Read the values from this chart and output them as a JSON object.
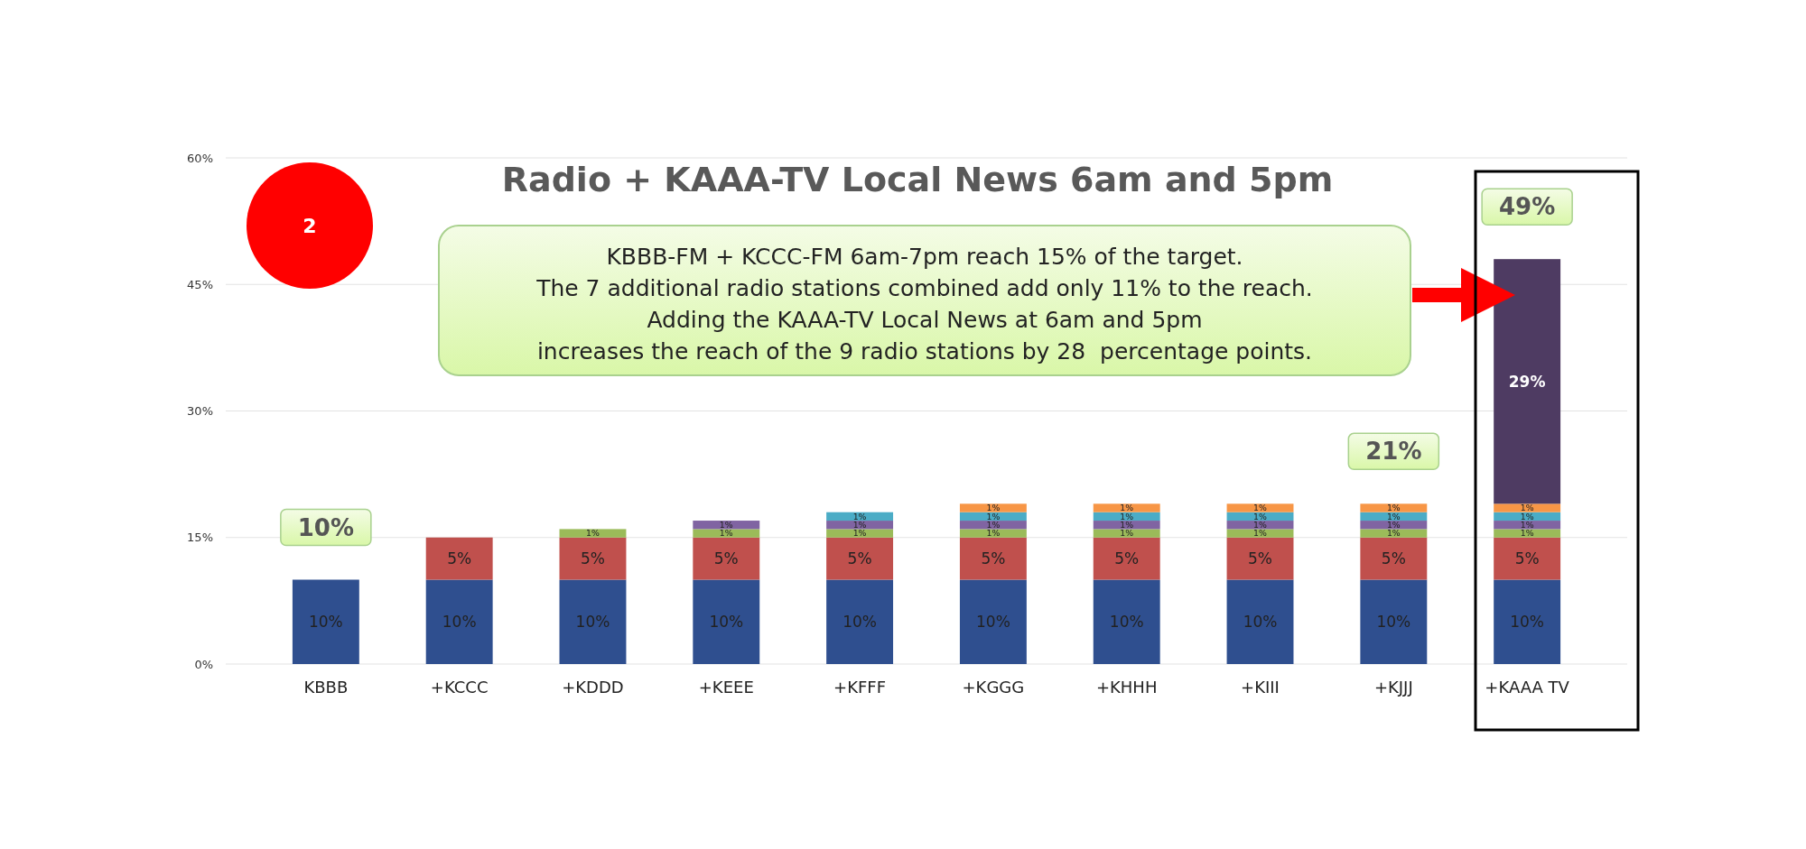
{
  "chart_data": {
    "type": "bar",
    "stacked": true,
    "title": "Radio + KAAA-TV Local News 6am and 5pm",
    "categories": [
      "KBBB",
      "+KCCC",
      "+KDDD",
      "+KEEE",
      "+KFFF",
      "+KGGG",
      "+KHHH",
      "+KIII",
      "+KJJJ",
      "+KAAA TV"
    ],
    "series": [
      {
        "color": "#2f4f8f",
        "values": [
          10,
          10,
          10,
          10,
          10,
          10,
          10,
          10,
          10,
          10
        ],
        "value_labels": [
          "10%",
          "10%",
          "10%",
          "10%",
          "10%",
          "10%",
          "10%",
          "10%",
          "10%",
          "10%"
        ]
      },
      {
        "color": "#c0504d",
        "values": [
          null,
          5,
          5,
          5,
          5,
          5,
          5,
          5,
          5,
          5
        ],
        "value_labels": [
          null,
          "5%",
          "5%",
          "5%",
          "5%",
          "5%",
          "5%",
          "5%",
          "5%",
          "5%"
        ]
      },
      {
        "color": "#9bbb59",
        "values": [
          null,
          null,
          1,
          1,
          1,
          1,
          1,
          1,
          1,
          1
        ],
        "value_labels": [
          null,
          null,
          "1%",
          "1%",
          "1%",
          "1%",
          "1%",
          "1%",
          "1%",
          "1%"
        ]
      },
      {
        "color": "#8064a2",
        "values": [
          null,
          null,
          null,
          1,
          1,
          1,
          1,
          1,
          1,
          1
        ],
        "value_labels": [
          null,
          null,
          null,
          "1%",
          "1%",
          "1%",
          "1%",
          "1%",
          "1%",
          "1%"
        ]
      },
      {
        "color": "#4bacc6",
        "values": [
          null,
          null,
          null,
          null,
          1,
          1,
          1,
          1,
          1,
          1
        ],
        "value_labels": [
          null,
          null,
          null,
          null,
          "1%",
          "1%",
          "1%",
          "1%",
          "1%",
          "1%"
        ]
      },
      {
        "color": "#f79646",
        "values": [
          null,
          null,
          null,
          null,
          null,
          1,
          1,
          1,
          1,
          1
        ],
        "value_labels": [
          null,
          null,
          null,
          null,
          null,
          "1%",
          "1%",
          "1%",
          "1%",
          "1%"
        ]
      },
      {
        "color": "#4e3b62",
        "values": [
          null,
          null,
          null,
          null,
          null,
          null,
          null,
          null,
          null,
          29
        ],
        "value_labels": [
          null,
          null,
          null,
          null,
          null,
          null,
          null,
          null,
          null,
          "29%"
        ]
      }
    ],
    "ylim": [
      0,
      60
    ],
    "yticks": [
      {
        "value": 0,
        "label": "0%"
      },
      {
        "value": 15,
        "label": "15%"
      },
      {
        "value": 30,
        "label": "30%"
      },
      {
        "value": 45,
        "label": "45%"
      },
      {
        "value": 60,
        "label": "60%"
      }
    ],
    "grid": "y",
    "annotations": [
      "2",
      "KBBB-FM + KCCC-FM 6am-7pm reach 15% of the target.\nThe 7 additional radio stations combined add only 11% to the reach.\nAdding the KAAA-TV Local News at 6am and 5pm\nincreases the reach of the 9 radio stations by 28  percentage points.",
      {
        "text": "10%",
        "x": "KBBB",
        "y": 10
      },
      {
        "text": "21%",
        "x": "+KJJJ",
        "y": 19
      },
      {
        "text": "49%",
        "x": "+KAAA TV",
        "y": 48
      }
    ]
  }
}
